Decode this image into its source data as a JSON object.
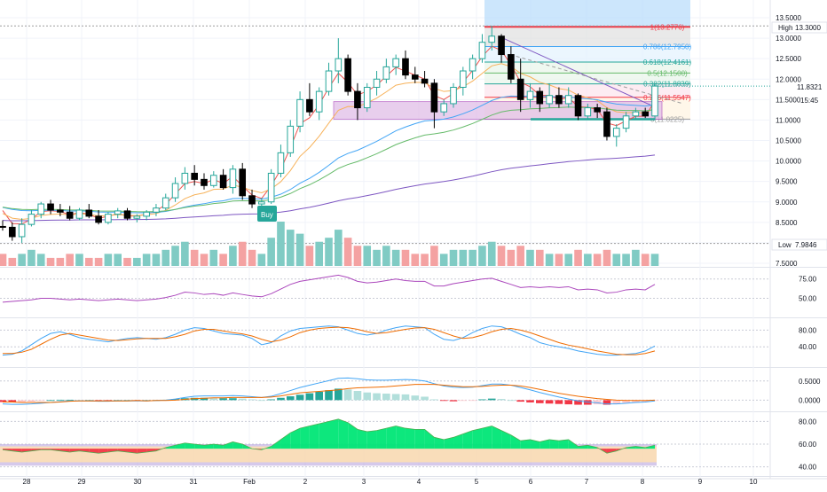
{
  "colors": {
    "up": "#26a69a",
    "down": "#000000",
    "vol_up": "#80cbc4",
    "vol_down": "#f4a2a2",
    "ema_fast": "#ef5350",
    "ema_mid": "#f7b25a",
    "ema_slow_a": "#42a5f5",
    "ema_slow_b": "#66bb6a",
    "ema_long": "#7e57c2",
    "rsi": "#ab47bc",
    "stoch_k": "#42a5f5",
    "stoch_d": "#ef6c00",
    "macd": "#42a5f5",
    "signal": "#ef6c00",
    "bull_fill": "#00e676",
    "bear_fill": "#f23645",
    "band": "#b39ddb",
    "fib_red": "#f23645",
    "zone_fill": "#e1bee7"
  },
  "chart_data": [
    {
      "type": "candlestick",
      "title": "",
      "x_labels": [
        "28",
        "29",
        "30",
        "31",
        "Feb",
        "2",
        "3",
        "4",
        "5",
        "6",
        "7",
        "8",
        "9",
        "10"
      ],
      "y_ticks": [
        "13.5000",
        "13.0000",
        "12.5000",
        "12.0000",
        "11.5000",
        "11.0000",
        "10.5000",
        "10.0000",
        "9.5000",
        "9.0000",
        "8.5000",
        "8.0000",
        "7.5000"
      ],
      "ylim": [
        7.5,
        13.5
      ],
      "price_label": "11.8321",
      "countdown": "15:45",
      "high_label": "High",
      "high_value": "13.3000",
      "low_label": "Low",
      "low_value": "7.9846",
      "buy_label": "Buy",
      "fib_levels": [
        {
          "label": "1(13.2776)",
          "value": 13.2776
        },
        {
          "label": "0.786(12.7950)",
          "value": 12.795
        },
        {
          "label": "0.618(12.4161)",
          "value": 12.4161
        },
        {
          "label": "0.5(12.1500)",
          "value": 12.15
        },
        {
          "label": "0.382(11.8839)",
          "value": 11.8839
        },
        {
          "label": "0.236(11.5547)",
          "value": 11.5547
        },
        {
          "label": "0(11.0225)",
          "value": 11.0225
        }
      ],
      "candles": [
        {
          "o": 8.4,
          "h": 8.55,
          "l": 8.3,
          "c": 8.38
        },
        {
          "o": 8.38,
          "h": 8.5,
          "l": 8.05,
          "c": 8.15
        },
        {
          "o": 8.15,
          "h": 8.6,
          "l": 8.0,
          "c": 8.45
        },
        {
          "o": 8.45,
          "h": 8.8,
          "l": 8.4,
          "c": 8.7
        },
        {
          "o": 8.7,
          "h": 9.0,
          "l": 8.6,
          "c": 8.95
        },
        {
          "o": 8.95,
          "h": 9.05,
          "l": 8.7,
          "c": 8.8
        },
        {
          "o": 8.8,
          "h": 8.95,
          "l": 8.65,
          "c": 8.75
        },
        {
          "o": 8.75,
          "h": 8.9,
          "l": 8.55,
          "c": 8.6
        },
        {
          "o": 8.6,
          "h": 8.85,
          "l": 8.55,
          "c": 8.8
        },
        {
          "o": 8.8,
          "h": 8.95,
          "l": 8.6,
          "c": 8.65
        },
        {
          "o": 8.65,
          "h": 8.8,
          "l": 8.45,
          "c": 8.5
        },
        {
          "o": 8.5,
          "h": 8.75,
          "l": 8.45,
          "c": 8.7
        },
        {
          "o": 8.7,
          "h": 8.85,
          "l": 8.6,
          "c": 8.78
        },
        {
          "o": 8.78,
          "h": 8.85,
          "l": 8.55,
          "c": 8.6
        },
        {
          "o": 8.6,
          "h": 8.7,
          "l": 8.5,
          "c": 8.65
        },
        {
          "o": 8.65,
          "h": 8.8,
          "l": 8.55,
          "c": 8.75
        },
        {
          "o": 8.75,
          "h": 8.95,
          "l": 8.65,
          "c": 8.85
        },
        {
          "o": 8.85,
          "h": 9.2,
          "l": 8.8,
          "c": 9.1
        },
        {
          "o": 9.1,
          "h": 9.6,
          "l": 9.0,
          "c": 9.45
        },
        {
          "o": 9.45,
          "h": 9.85,
          "l": 9.3,
          "c": 9.7
        },
        {
          "o": 9.7,
          "h": 9.9,
          "l": 9.4,
          "c": 9.55
        },
        {
          "o": 9.55,
          "h": 9.7,
          "l": 9.3,
          "c": 9.4
        },
        {
          "o": 9.4,
          "h": 9.75,
          "l": 9.35,
          "c": 9.65
        },
        {
          "o": 9.65,
          "h": 9.8,
          "l": 9.3,
          "c": 9.35
        },
        {
          "o": 9.35,
          "h": 9.9,
          "l": 9.2,
          "c": 9.8
        },
        {
          "o": 9.8,
          "h": 9.95,
          "l": 9.05,
          "c": 9.15
        },
        {
          "o": 9.15,
          "h": 9.3,
          "l": 8.85,
          "c": 8.95
        },
        {
          "o": 8.95,
          "h": 9.1,
          "l": 8.85,
          "c": 9.0
        },
        {
          "o": 9.0,
          "h": 9.8,
          "l": 8.95,
          "c": 9.7
        },
        {
          "o": 9.7,
          "h": 10.4,
          "l": 9.6,
          "c": 10.2
        },
        {
          "o": 10.2,
          "h": 11.0,
          "l": 10.1,
          "c": 10.85
        },
        {
          "o": 10.85,
          "h": 11.7,
          "l": 10.7,
          "c": 11.5
        },
        {
          "o": 11.5,
          "h": 11.9,
          "l": 11.1,
          "c": 11.2
        },
        {
          "o": 11.2,
          "h": 11.8,
          "l": 11.0,
          "c": 11.7
        },
        {
          "o": 11.7,
          "h": 12.4,
          "l": 11.6,
          "c": 12.2
        },
        {
          "o": 12.2,
          "h": 13.0,
          "l": 11.9,
          "c": 12.5
        },
        {
          "o": 12.5,
          "h": 12.6,
          "l": 11.6,
          "c": 11.7
        },
        {
          "o": 11.7,
          "h": 11.9,
          "l": 11.0,
          "c": 11.3
        },
        {
          "o": 11.3,
          "h": 11.9,
          "l": 11.2,
          "c": 11.8
        },
        {
          "o": 11.8,
          "h": 12.2,
          "l": 11.6,
          "c": 12.0
        },
        {
          "o": 12.0,
          "h": 12.5,
          "l": 11.9,
          "c": 12.3
        },
        {
          "o": 12.3,
          "h": 12.6,
          "l": 12.1,
          "c": 12.5
        },
        {
          "o": 12.5,
          "h": 12.7,
          "l": 12.0,
          "c": 12.1
        },
        {
          "o": 12.1,
          "h": 12.3,
          "l": 11.9,
          "c": 12.0
        },
        {
          "o": 12.0,
          "h": 12.2,
          "l": 11.8,
          "c": 11.9
        },
        {
          "o": 11.9,
          "h": 12.0,
          "l": 10.8,
          "c": 11.2
        },
        {
          "o": 11.2,
          "h": 11.5,
          "l": 11.1,
          "c": 11.4
        },
        {
          "o": 11.4,
          "h": 11.9,
          "l": 11.3,
          "c": 11.8
        },
        {
          "o": 11.8,
          "h": 12.3,
          "l": 11.6,
          "c": 12.2
        },
        {
          "o": 12.2,
          "h": 12.6,
          "l": 12.0,
          "c": 12.5
        },
        {
          "o": 12.5,
          "h": 13.1,
          "l": 12.4,
          "c": 12.9
        },
        {
          "o": 12.9,
          "h": 13.3,
          "l": 12.7,
          "c": 13.05
        },
        {
          "o": 13.05,
          "h": 13.1,
          "l": 12.4,
          "c": 12.6
        },
        {
          "o": 12.6,
          "h": 12.8,
          "l": 11.9,
          "c": 12.0
        },
        {
          "o": 12.0,
          "h": 12.5,
          "l": 11.2,
          "c": 11.5
        },
        {
          "o": 11.5,
          "h": 11.9,
          "l": 11.3,
          "c": 11.7
        },
        {
          "o": 11.7,
          "h": 11.8,
          "l": 11.2,
          "c": 11.4
        },
        {
          "o": 11.4,
          "h": 11.9,
          "l": 11.3,
          "c": 11.6
        },
        {
          "o": 11.6,
          "h": 11.8,
          "l": 11.3,
          "c": 11.4
        },
        {
          "o": 11.4,
          "h": 11.8,
          "l": 11.3,
          "c": 11.6
        },
        {
          "o": 11.6,
          "h": 11.65,
          "l": 11.0,
          "c": 11.1
        },
        {
          "o": 11.1,
          "h": 11.4,
          "l": 11.0,
          "c": 11.3
        },
        {
          "o": 11.3,
          "h": 11.4,
          "l": 11.05,
          "c": 11.2
        },
        {
          "o": 11.2,
          "h": 11.3,
          "l": 10.5,
          "c": 10.6
        },
        {
          "o": 10.6,
          "h": 10.9,
          "l": 10.35,
          "c": 10.8
        },
        {
          "o": 10.8,
          "h": 11.2,
          "l": 10.7,
          "c": 11.1
        },
        {
          "o": 11.1,
          "h": 11.3,
          "l": 11.0,
          "c": 11.2
        },
        {
          "o": 11.2,
          "h": 11.3,
          "l": 11.05,
          "c": 11.1
        },
        {
          "o": 11.1,
          "h": 11.9,
          "l": 11.0,
          "c": 11.83
        }
      ],
      "volume": [
        3,
        2,
        3,
        4,
        3,
        2,
        2,
        3,
        3,
        2,
        2,
        3,
        3,
        2,
        2,
        3,
        3,
        4,
        5,
        6,
        4,
        3,
        4,
        3,
        5,
        6,
        4,
        3,
        7,
        11,
        9,
        8,
        5,
        6,
        7,
        9,
        7,
        5,
        5,
        4,
        5,
        4,
        4,
        3,
        3,
        5,
        3,
        4,
        4,
        4,
        5,
        6,
        5,
        4,
        5,
        4,
        4,
        3,
        3,
        3,
        4,
        3,
        3,
        4,
        3,
        3,
        4,
        3,
        3
      ]
    },
    {
      "type": "line",
      "title": "",
      "y_ticks": [
        "75.00",
        "50.00"
      ],
      "ylim": [
        30,
        85
      ],
      "series": [
        {
          "values": [
            45,
            46,
            47,
            48,
            50,
            50,
            49,
            48,
            49,
            48,
            47,
            48,
            49,
            48,
            47,
            48,
            49,
            51,
            54,
            58,
            57,
            55,
            56,
            54,
            57,
            55,
            53,
            52,
            56,
            62,
            68,
            72,
            74,
            76,
            78,
            80,
            77,
            72,
            70,
            71,
            73,
            75,
            73,
            72,
            72,
            66,
            66,
            69,
            71,
            73,
            75,
            76,
            72,
            68,
            64,
            65,
            64,
            65,
            64,
            65,
            61,
            62,
            61,
            57,
            58,
            61,
            62,
            61,
            68
          ]
        }
      ]
    },
    {
      "type": "line",
      "title": "",
      "y_ticks": [
        "80.00",
        "40.00"
      ],
      "ylim": [
        0,
        100
      ],
      "series": [
        {
          "values": [
            20,
            22,
            30,
            45,
            60,
            72,
            76,
            70,
            62,
            58,
            55,
            52,
            56,
            60,
            62,
            60,
            58,
            62,
            70,
            80,
            86,
            84,
            78,
            72,
            70,
            68,
            60,
            45,
            50,
            66,
            78,
            84,
            86,
            88,
            90,
            88,
            80,
            72,
            68,
            72,
            80,
            86,
            90,
            88,
            86,
            70,
            58,
            55,
            62,
            74,
            84,
            90,
            88,
            80,
            70,
            62,
            50,
            44,
            40,
            36,
            30,
            26,
            22,
            20,
            20,
            22,
            24,
            30,
            42
          ]
        },
        {
          "values": [
            24,
            24,
            27,
            34,
            46,
            58,
            68,
            72,
            68,
            64,
            60,
            56,
            55,
            57,
            59,
            60,
            60,
            60,
            64,
            70,
            78,
            82,
            82,
            78,
            74,
            71,
            66,
            58,
            52,
            56,
            64,
            74,
            80,
            84,
            86,
            87,
            86,
            82,
            76,
            72,
            74,
            78,
            82,
            85,
            86,
            82,
            74,
            66,
            60,
            62,
            68,
            76,
            82,
            84,
            80,
            74,
            66,
            58,
            50,
            44,
            40,
            35,
            30,
            26,
            22,
            21,
            21,
            24,
            30
          ]
        }
      ]
    },
    {
      "type": "bar",
      "title": "",
      "y_ticks": [
        "0.5000",
        "0.0000"
      ],
      "ylim": [
        -0.2,
        0.75
      ],
      "series": [
        {
          "name": "",
          "values": [
            -0.05,
            -0.06,
            -0.05,
            -0.04,
            -0.02,
            0.0,
            0.01,
            0.01,
            0.0,
            0.0,
            -0.01,
            -0.01,
            0.0,
            0.0,
            -0.01,
            0.0,
            0.0,
            0.01,
            0.03,
            0.05,
            0.06,
            0.06,
            0.05,
            0.05,
            0.05,
            0.04,
            0.02,
            0.0,
            0.02,
            0.06,
            0.1,
            0.14,
            0.18,
            0.22,
            0.26,
            0.3,
            0.28,
            0.24,
            0.2,
            0.18,
            0.17,
            0.16,
            0.15,
            0.12,
            0.09,
            0.02,
            -0.02,
            -0.03,
            -0.02,
            -0.01,
            0.02,
            0.04,
            0.03,
            0.0,
            -0.04,
            -0.06,
            -0.08,
            -0.09,
            -0.1,
            -0.11,
            -0.12,
            -0.12,
            -0.11,
            -0.12,
            -0.1,
            -0.07,
            -0.05,
            -0.04,
            -0.02
          ]
        },
        {
          "values": [
            -0.1,
            -0.11,
            -0.11,
            -0.1,
            -0.08,
            -0.06,
            -0.04,
            -0.02,
            -0.02,
            -0.02,
            -0.03,
            -0.03,
            -0.02,
            -0.02,
            -0.02,
            -0.02,
            -0.01,
            0.0,
            0.03,
            0.07,
            0.1,
            0.11,
            0.11,
            0.11,
            0.12,
            0.11,
            0.09,
            0.07,
            0.1,
            0.17,
            0.25,
            0.33,
            0.39,
            0.45,
            0.51,
            0.57,
            0.58,
            0.56,
            0.53,
            0.52,
            0.52,
            0.53,
            0.54,
            0.53,
            0.5,
            0.43,
            0.37,
            0.34,
            0.33,
            0.34,
            0.38,
            0.42,
            0.42,
            0.39,
            0.33,
            0.27,
            0.2,
            0.14,
            0.08,
            0.03,
            -0.02,
            -0.05,
            -0.07,
            -0.1,
            -0.1,
            -0.08,
            -0.06,
            -0.05,
            -0.02
          ]
        },
        {
          "values": [
            -0.05,
            -0.05,
            -0.06,
            -0.06,
            -0.06,
            -0.06,
            -0.05,
            -0.03,
            -0.02,
            -0.02,
            -0.02,
            -0.02,
            -0.02,
            -0.02,
            -0.01,
            -0.02,
            -0.01,
            -0.01,
            0.0,
            0.02,
            0.04,
            0.05,
            0.06,
            0.06,
            0.07,
            0.07,
            0.07,
            0.07,
            0.08,
            0.11,
            0.15,
            0.19,
            0.21,
            0.23,
            0.25,
            0.27,
            0.3,
            0.32,
            0.33,
            0.34,
            0.35,
            0.37,
            0.39,
            0.41,
            0.41,
            0.41,
            0.39,
            0.37,
            0.35,
            0.35,
            0.36,
            0.38,
            0.39,
            0.39,
            0.37,
            0.33,
            0.28,
            0.23,
            0.18,
            0.14,
            0.1,
            0.07,
            0.04,
            0.02,
            0.0,
            -0.01,
            -0.01,
            -0.01,
            0.0
          ]
        }
      ]
    },
    {
      "type": "area",
      "title": "",
      "y_ticks": [
        "80.00",
        "60.00",
        "40.00"
      ],
      "ylim": [
        35,
        85
      ],
      "series": [
        {
          "values": [
            55,
            54,
            53,
            54,
            55,
            55,
            54,
            53,
            54,
            53,
            52,
            53,
            54,
            53,
            52,
            53,
            54,
            57,
            59,
            61,
            60,
            59,
            60,
            59,
            62,
            60,
            56,
            55,
            58,
            64,
            70,
            74,
            76,
            78,
            80,
            82,
            79,
            73,
            71,
            72,
            74,
            76,
            74,
            73,
            73,
            66,
            64,
            66,
            69,
            72,
            74,
            76,
            72,
            68,
            63,
            64,
            62,
            64,
            63,
            64,
            58,
            59,
            57,
            52,
            54,
            57,
            58,
            57,
            59
          ]
        }
      ],
      "mid": 56
    }
  ]
}
